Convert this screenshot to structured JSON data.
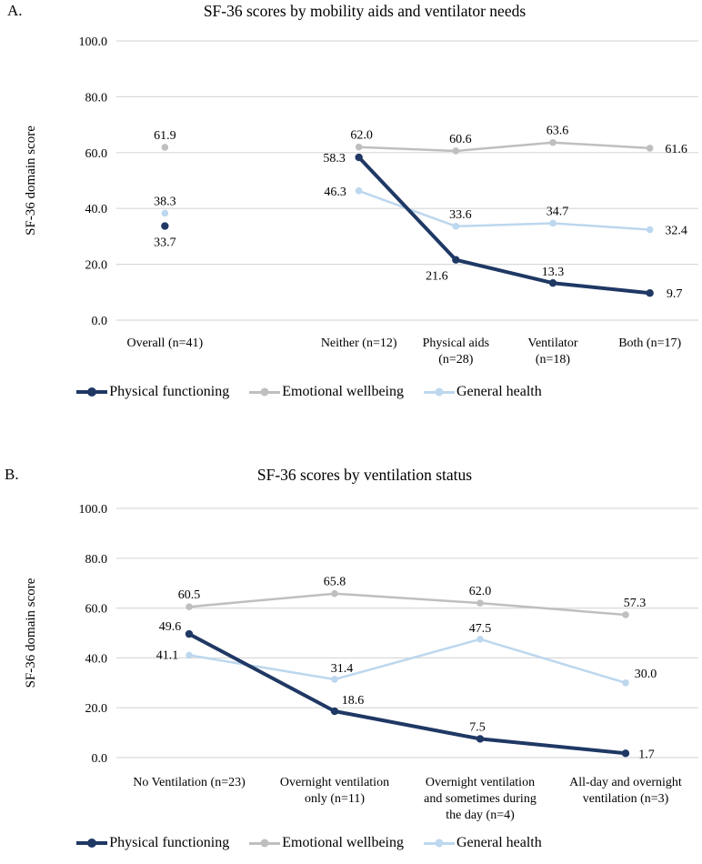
{
  "page": {
    "background": "#ffffff",
    "grid_color": "#d9d9d9"
  },
  "chart_data": [
    {
      "panel_label": "A.",
      "type": "line",
      "title": "SF-36 scores by mobility aids and ventilator needs",
      "ylabel": "SF-36 domain score",
      "ylim": [
        0,
        100
      ],
      "ytick_labels": [
        "0.0",
        "20.0",
        "40.0",
        "60.0",
        "80.0",
        "100.0"
      ],
      "grid": true,
      "legend_position": "bottom",
      "categories": [
        "Overall (n=41)",
        "Neither (n=12)",
        "Physical aids\n(n=28)",
        "Ventilator\n(n=18)",
        "Both (n=17)"
      ],
      "slots": [
        0,
        2,
        3,
        4,
        5
      ],
      "n_slots": 6,
      "line_start_index": 1,
      "series": [
        {
          "name": "Physical functioning",
          "color": "#1f3864",
          "z": 3,
          "width": 4,
          "values": [
            33.7,
            58.3,
            21.6,
            13.3,
            9.7
          ],
          "label_offsets": [
            [
              0,
              22
            ],
            [
              -27,
              5
            ],
            [
              -21,
              22
            ],
            [
              0,
              -8
            ],
            [
              27,
              5
            ]
          ]
        },
        {
          "name": "Emotional wellbeing",
          "color": "#bfbfbf",
          "z": 1,
          "width": 2.5,
          "values": [
            61.9,
            62.0,
            60.6,
            63.6,
            61.6
          ],
          "label_offsets": [
            [
              0,
              -9
            ],
            [
              3,
              -9
            ],
            [
              5,
              -9
            ],
            [
              5,
              -9
            ],
            [
              29,
              5
            ]
          ]
        },
        {
          "name": "General health",
          "color": "#bdd7ee",
          "z": 2,
          "width": 2.5,
          "values": [
            38.3,
            46.3,
            33.6,
            34.7,
            32.4
          ],
          "label_offsets": [
            [
              0,
              -9
            ],
            [
              -26,
              5
            ],
            [
              5,
              -9
            ],
            [
              5,
              -9
            ],
            [
              29,
              5
            ]
          ]
        }
      ]
    },
    {
      "panel_label": "B.",
      "type": "line",
      "title": "SF-36 scores by ventilation status",
      "ylabel": "SF-36 domain score",
      "ylim": [
        0,
        100
      ],
      "ytick_labels": [
        "0.0",
        "20.0",
        "40.0",
        "60.0",
        "80.0",
        "100.0"
      ],
      "grid": true,
      "legend_position": "bottom",
      "categories": [
        "No Ventilation (n=23)",
        "Overnight ventilation\nonly (n=11)",
        "Overnight ventilation\nand sometimes during\nthe day (n=4)",
        "All-day and overnight\nventilation (n=3)"
      ],
      "slots": [
        0,
        1,
        2,
        3
      ],
      "n_slots": 4,
      "line_start_index": 0,
      "series": [
        {
          "name": "Physical functioning",
          "color": "#1f3864",
          "z": 3,
          "width": 4,
          "values": [
            49.6,
            18.6,
            7.5,
            1.7
          ],
          "label_offsets": [
            [
              -21,
              -4
            ],
            [
              20,
              -8
            ],
            [
              -3,
              -9
            ],
            [
              23,
              5
            ]
          ]
        },
        {
          "name": "Emotional wellbeing",
          "color": "#bfbfbf",
          "z": 1,
          "width": 2.5,
          "values": [
            60.5,
            65.8,
            62.0,
            57.3
          ],
          "label_offsets": [
            [
              0,
              -9
            ],
            [
              0,
              -9
            ],
            [
              0,
              -9
            ],
            [
              10,
              -9
            ]
          ]
        },
        {
          "name": "General health",
          "color": "#bdd7ee",
          "z": 2,
          "width": 2.5,
          "values": [
            41.1,
            31.4,
            47.5,
            30.0
          ],
          "label_offsets": [
            [
              -24,
              4
            ],
            [
              8,
              -8
            ],
            [
              0,
              -8
            ],
            [
              22,
              -6
            ]
          ]
        }
      ]
    }
  ]
}
